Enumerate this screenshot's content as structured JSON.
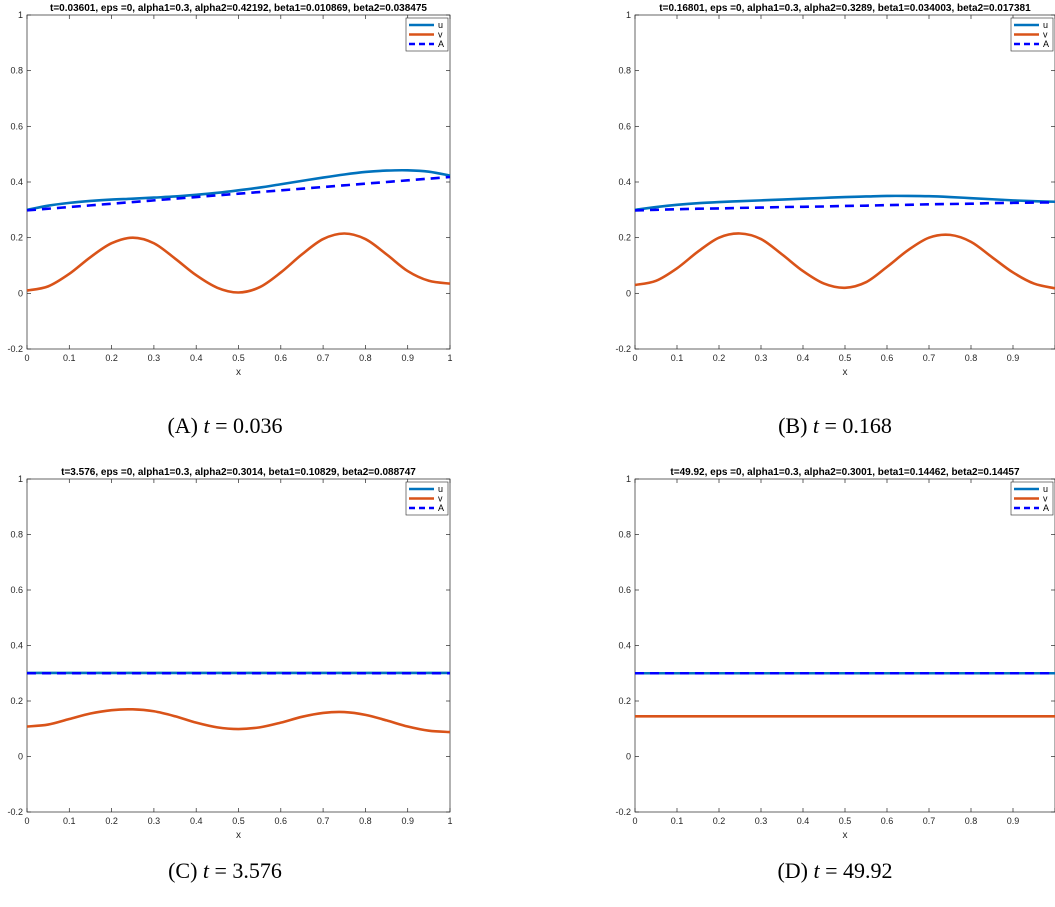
{
  "colors": {
    "u": "#0072BD",
    "v": "#D95319",
    "A": "#0000FF"
  },
  "chart_data": [
    {
      "type": "line",
      "title": "t=0.03601, eps =0, alpha1=0.3, alpha2=0.42192, beta1=0.010869, beta2=0.038475",
      "caption_label": "(A)",
      "caption_var": "t",
      "caption_eq": " = 0.036",
      "xlabel": "x",
      "ylabel": "",
      "xlim": [
        0,
        1
      ],
      "ylim": [
        -0.2,
        1
      ],
      "xticks": [
        "0",
        "0.1",
        "0.2",
        "0.3",
        "0.4",
        "0.5",
        "0.6",
        "0.7",
        "0.8",
        "0.9",
        "1"
      ],
      "yticks": [
        "-0.2",
        "0",
        "0.2",
        "0.4",
        "0.6",
        "0.8",
        "1"
      ],
      "legend": {
        "position": "top-right",
        "entries": [
          "u",
          "v",
          "A"
        ]
      },
      "x": [
        0,
        0.05,
        0.1,
        0.15,
        0.2,
        0.25,
        0.3,
        0.35,
        0.4,
        0.45,
        0.5,
        0.55,
        0.6,
        0.65,
        0.7,
        0.75,
        0.8,
        0.85,
        0.9,
        0.95,
        1.0
      ],
      "series": [
        {
          "name": "u",
          "values": [
            0.3,
            0.315,
            0.325,
            0.332,
            0.337,
            0.34,
            0.344,
            0.348,
            0.354,
            0.361,
            0.37,
            0.38,
            0.392,
            0.404,
            0.416,
            0.427,
            0.436,
            0.441,
            0.442,
            0.437,
            0.423
          ]
        },
        {
          "name": "v",
          "values": [
            0.01,
            0.025,
            0.07,
            0.13,
            0.18,
            0.2,
            0.18,
            0.125,
            0.065,
            0.02,
            0.003,
            0.022,
            0.075,
            0.14,
            0.195,
            0.215,
            0.195,
            0.14,
            0.08,
            0.045,
            0.035
          ]
        },
        {
          "name": "A",
          "values": [
            0.298,
            0.304,
            0.31,
            0.316,
            0.322,
            0.328,
            0.334,
            0.34,
            0.346,
            0.352,
            0.358,
            0.364,
            0.37,
            0.376,
            0.382,
            0.388,
            0.394,
            0.4,
            0.406,
            0.412,
            0.418
          ]
        }
      ]
    },
    {
      "type": "line",
      "title": "t=0.16801, eps =0, alpha1=0.3, alpha2=0.3289, beta1=0.034003, beta2=0.017381",
      "caption_label": "(B)",
      "caption_var": "t",
      "caption_eq": " = 0.168",
      "xlabel": "x",
      "ylabel": "",
      "xlim": [
        0,
        1
      ],
      "ylim": [
        -0.2,
        1
      ],
      "xticks": [
        "0",
        "0.1",
        "0.2",
        "0.3",
        "0.4",
        "0.5",
        "0.6",
        "0.7",
        "0.8",
        "0.9",
        ""
      ],
      "yticks": [
        "-0.2",
        "0",
        "0.2",
        "0.4",
        "0.6",
        "0.8",
        "1"
      ],
      "legend": {
        "position": "top-right",
        "entries": [
          "u",
          "v",
          "A"
        ]
      },
      "x": [
        0,
        0.05,
        0.1,
        0.15,
        0.2,
        0.25,
        0.3,
        0.35,
        0.4,
        0.45,
        0.5,
        0.55,
        0.6,
        0.65,
        0.7,
        0.75,
        0.8,
        0.85,
        0.9,
        0.95,
        1.0
      ],
      "series": [
        {
          "name": "u",
          "values": [
            0.3,
            0.31,
            0.318,
            0.324,
            0.328,
            0.331,
            0.334,
            0.337,
            0.34,
            0.343,
            0.346,
            0.348,
            0.35,
            0.35,
            0.349,
            0.346,
            0.342,
            0.338,
            0.334,
            0.331,
            0.329
          ]
        },
        {
          "name": "v",
          "values": [
            0.03,
            0.045,
            0.09,
            0.15,
            0.2,
            0.215,
            0.195,
            0.14,
            0.08,
            0.035,
            0.02,
            0.04,
            0.095,
            0.155,
            0.2,
            0.21,
            0.185,
            0.13,
            0.075,
            0.035,
            0.018
          ]
        },
        {
          "name": "A",
          "values": [
            0.298,
            0.3,
            0.302,
            0.304,
            0.305,
            0.307,
            0.308,
            0.31,
            0.311,
            0.312,
            0.314,
            0.315,
            0.317,
            0.318,
            0.32,
            0.321,
            0.322,
            0.324,
            0.325,
            0.326,
            0.327
          ]
        }
      ]
    },
    {
      "type": "line",
      "title": "t=3.576, eps =0, alpha1=0.3, alpha2=0.3014, beta1=0.10829, beta2=0.088747",
      "caption_label": "(C)",
      "caption_var": "t",
      "caption_eq": " = 3.576",
      "xlabel": "x",
      "ylabel": "",
      "xlim": [
        0,
        1
      ],
      "ylim": [
        -0.2,
        1
      ],
      "xticks": [
        "0",
        "0.1",
        "0.2",
        "0.3",
        "0.4",
        "0.5",
        "0.6",
        "0.7",
        "0.8",
        "0.9",
        "1"
      ],
      "yticks": [
        "-0.2",
        "0",
        "0.2",
        "0.4",
        "0.6",
        "0.8",
        "1"
      ],
      "legend": {
        "position": "top-right",
        "entries": [
          "u",
          "v",
          "A"
        ]
      },
      "x": [
        0,
        0.05,
        0.1,
        0.15,
        0.2,
        0.25,
        0.3,
        0.35,
        0.4,
        0.45,
        0.5,
        0.55,
        0.6,
        0.65,
        0.7,
        0.75,
        0.8,
        0.85,
        0.9,
        0.95,
        1.0
      ],
      "series": [
        {
          "name": "u",
          "values": [
            0.301,
            0.301,
            0.301,
            0.301,
            0.301,
            0.301,
            0.301,
            0.301,
            0.301,
            0.301,
            0.301,
            0.301,
            0.301,
            0.301,
            0.301,
            0.301,
            0.301,
            0.301,
            0.301,
            0.301,
            0.301
          ]
        },
        {
          "name": "v",
          "values": [
            0.108,
            0.115,
            0.135,
            0.155,
            0.167,
            0.17,
            0.163,
            0.145,
            0.122,
            0.105,
            0.099,
            0.105,
            0.122,
            0.143,
            0.157,
            0.16,
            0.15,
            0.13,
            0.108,
            0.093,
            0.088
          ]
        },
        {
          "name": "A",
          "values": [
            0.3,
            0.3,
            0.3,
            0.3,
            0.3,
            0.3,
            0.3,
            0.3,
            0.3,
            0.3,
            0.3,
            0.3,
            0.3,
            0.3,
            0.3,
            0.3,
            0.3,
            0.3,
            0.3,
            0.3,
            0.3
          ]
        }
      ]
    },
    {
      "type": "line",
      "title": "t=49.92, eps =0, alpha1=0.3, alpha2=0.3001, beta1=0.14462, beta2=0.14457",
      "caption_label": "(D)",
      "caption_var": "t",
      "caption_eq": " = 49.92",
      "xlabel": "x",
      "ylabel": "",
      "xlim": [
        0,
        1
      ],
      "ylim": [
        -0.2,
        1
      ],
      "xticks": [
        "0",
        "0.1",
        "0.2",
        "0.3",
        "0.4",
        "0.5",
        "0.6",
        "0.7",
        "0.8",
        "0.9",
        ""
      ],
      "yticks": [
        "-0.2",
        "0",
        "0.2",
        "0.4",
        "0.6",
        "0.8",
        "1"
      ],
      "legend": {
        "position": "top-right",
        "entries": [
          "u",
          "v",
          "A"
        ]
      },
      "x": [
        0,
        0.05,
        0.1,
        0.15,
        0.2,
        0.25,
        0.3,
        0.35,
        0.4,
        0.45,
        0.5,
        0.55,
        0.6,
        0.65,
        0.7,
        0.75,
        0.8,
        0.85,
        0.9,
        0.95,
        1.0
      ],
      "series": [
        {
          "name": "u",
          "values": [
            0.3,
            0.3,
            0.3,
            0.3,
            0.3,
            0.3,
            0.3,
            0.3,
            0.3,
            0.3,
            0.3,
            0.3,
            0.3,
            0.3,
            0.3,
            0.3,
            0.3,
            0.3,
            0.3,
            0.3,
            0.3
          ]
        },
        {
          "name": "v",
          "values": [
            0.145,
            0.145,
            0.145,
            0.145,
            0.145,
            0.145,
            0.145,
            0.145,
            0.145,
            0.145,
            0.145,
            0.145,
            0.145,
            0.145,
            0.145,
            0.145,
            0.145,
            0.145,
            0.145,
            0.145,
            0.145
          ]
        },
        {
          "name": "A",
          "values": [
            0.3,
            0.3,
            0.3,
            0.3,
            0.3,
            0.3,
            0.3,
            0.3,
            0.3,
            0.3,
            0.3,
            0.3,
            0.3,
            0.3,
            0.3,
            0.3,
            0.3,
            0.3,
            0.3,
            0.3,
            0.3
          ]
        }
      ]
    }
  ]
}
